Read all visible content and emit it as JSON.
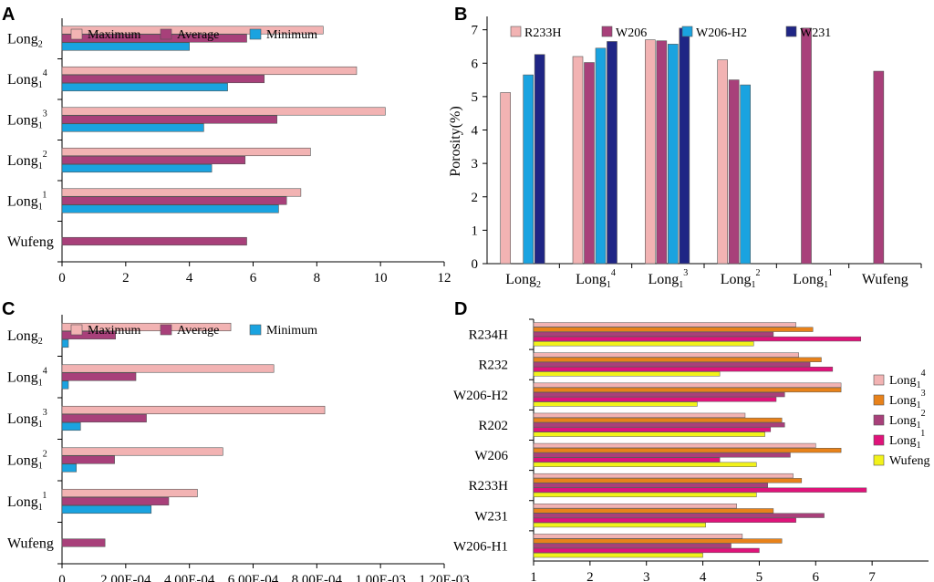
{
  "colors": {
    "maximum": "#f2b3b3",
    "average": "#a8407a",
    "minimum": "#1aa3e0",
    "R233H": "#f2b3b3",
    "W206": "#a8407a",
    "W206-H2": "#1aa3e0",
    "W231": "#1f2585",
    "Long1_4": "#f2b3b3",
    "Long1_3": "#e8821a",
    "Long1_2": "#a8407a",
    "Long1_1": "#e0137a",
    "Wufeng": "#f2f21a"
  },
  "chart_data": [
    {
      "panel": "A",
      "type": "bar",
      "orientation": "horizontal",
      "categories": [
        {
          "base": "Long",
          "sub": "2",
          "sup": ""
        },
        {
          "base": "Long",
          "sub": "1",
          "sup": "4"
        },
        {
          "base": "Long",
          "sub": "1",
          "sup": "3"
        },
        {
          "base": "Long",
          "sub": "1",
          "sup": "2"
        },
        {
          "base": "Long",
          "sub": "1",
          "sup": "1"
        },
        {
          "base": "Wufeng",
          "sub": "",
          "sup": ""
        }
      ],
      "series": [
        {
          "name": "Maximum",
          "color_key": "maximum",
          "values": [
            8.2,
            9.25,
            10.15,
            7.8,
            7.5,
            null
          ]
        },
        {
          "name": "Average",
          "color_key": "average",
          "values": [
            5.8,
            6.35,
            6.75,
            5.75,
            7.05,
            5.8
          ]
        },
        {
          "name": "Minimum",
          "color_key": "minimum",
          "values": [
            4.0,
            5.2,
            4.45,
            4.7,
            6.8,
            null
          ]
        }
      ],
      "xlim": [
        0,
        12
      ],
      "xticks": [
        "0",
        "2",
        "4",
        "6",
        "8",
        "10",
        "12"
      ],
      "xtick_values": [
        0,
        2,
        4,
        6,
        8,
        10,
        12
      ],
      "xlabel": "",
      "ylabel": "",
      "legend": [
        "Maximum",
        "Average",
        "Minimum"
      ],
      "legend_position": "top"
    },
    {
      "panel": "B",
      "type": "bar",
      "orientation": "vertical",
      "categories": [
        {
          "base": "Long",
          "sub": "2",
          "sup": ""
        },
        {
          "base": "Long",
          "sub": "1",
          "sup": "4"
        },
        {
          "base": "Long",
          "sub": "1",
          "sup": "3"
        },
        {
          "base": "Long",
          "sub": "1",
          "sup": "2"
        },
        {
          "base": "Long",
          "sub": "1",
          "sup": "1"
        },
        {
          "base": "Wufeng",
          "sub": "",
          "sup": ""
        }
      ],
      "series": [
        {
          "name": "R233H",
          "color_key": "R233H",
          "values": [
            5.12,
            6.2,
            6.7,
            6.1,
            null,
            null
          ]
        },
        {
          "name": "W206",
          "color_key": "W206",
          "values": [
            null,
            6.02,
            6.67,
            5.5,
            7.05,
            5.76
          ]
        },
        {
          "name": "W206-H2",
          "color_key": "W206-H2",
          "values": [
            5.65,
            6.45,
            6.57,
            5.35,
            null,
            null
          ]
        },
        {
          "name": "W231",
          "color_key": "W231",
          "values": [
            6.26,
            6.65,
            7.05,
            null,
            null,
            null
          ]
        }
      ],
      "ylim": [
        0,
        7.4
      ],
      "yticks": [
        "0",
        "1",
        "2",
        "3",
        "4",
        "5",
        "6",
        "7"
      ],
      "ytick_values": [
        0,
        1,
        2,
        3,
        4,
        5,
        6,
        7
      ],
      "ylabel": "Porosity(%)",
      "xlabel": "",
      "legend": [
        "R233H",
        "W206",
        "W206-H2",
        "W231"
      ],
      "legend_position": "top"
    },
    {
      "panel": "C",
      "type": "bar",
      "orientation": "horizontal",
      "categories": [
        {
          "base": "Long",
          "sub": "2",
          "sup": ""
        },
        {
          "base": "Long",
          "sub": "1",
          "sup": "4"
        },
        {
          "base": "Long",
          "sub": "1",
          "sup": "3"
        },
        {
          "base": "Long",
          "sub": "1",
          "sup": "2"
        },
        {
          "base": "Long",
          "sub": "1",
          "sup": "1"
        },
        {
          "base": "Wufeng",
          "sub": "",
          "sup": ""
        }
      ],
      "series": [
        {
          "name": "Maximum",
          "color_key": "maximum",
          "values": [
            0.00053,
            0.000665,
            0.000825,
            0.000505,
            0.000425,
            null
          ]
        },
        {
          "name": "Average",
          "color_key": "average",
          "values": [
            0.000168,
            0.000232,
            0.000265,
            0.000165,
            0.000335,
            0.000135
          ]
        },
        {
          "name": "Minimum",
          "color_key": "minimum",
          "values": [
            2e-05,
            2e-05,
            5.8e-05,
            4.5e-05,
            0.00028,
            null
          ]
        }
      ],
      "xlim": [
        0,
        0.0012
      ],
      "xticks": [
        "0",
        "2.00E-04",
        "4.00E-04",
        "6.00E-04",
        "8.00E-04",
        "1.00E-03",
        "1.20E-03"
      ],
      "xtick_values": [
        0,
        0.0002,
        0.0004,
        0.0006,
        0.0008,
        0.001,
        0.0012
      ],
      "xlabel": "",
      "ylabel": "",
      "legend": [
        "Maximum",
        "Average",
        "Minimum"
      ],
      "legend_position": "top"
    },
    {
      "panel": "D",
      "type": "bar",
      "orientation": "horizontal",
      "categories": [
        {
          "base": "R234H",
          "sub": "",
          "sup": ""
        },
        {
          "base": "R232",
          "sub": "",
          "sup": ""
        },
        {
          "base": "W206-H2",
          "sub": "",
          "sup": ""
        },
        {
          "base": "R202",
          "sub": "",
          "sup": ""
        },
        {
          "base": "W206",
          "sub": "",
          "sup": ""
        },
        {
          "base": "R233H",
          "sub": "",
          "sup": ""
        },
        {
          "base": "W231",
          "sub": "",
          "sup": ""
        },
        {
          "base": "W206-H1",
          "sub": "",
          "sup": ""
        }
      ],
      "series": [
        {
          "name": "Long1^4",
          "label": {
            "base": "Long",
            "sub": "1",
            "sup": "4"
          },
          "color_key": "Long1_4",
          "values": [
            5.65,
            5.7,
            6.45,
            4.75,
            6.0,
            5.6,
            4.6,
            4.7
          ]
        },
        {
          "name": "Long1^3",
          "label": {
            "base": "Long",
            "sub": "1",
            "sup": "3"
          },
          "color_key": "Long1_3",
          "values": [
            5.95,
            6.1,
            6.45,
            5.4,
            6.45,
            5.75,
            5.25,
            5.4
          ]
        },
        {
          "name": "Long1^2",
          "label": {
            "base": "Long",
            "sub": "1",
            "sup": "2"
          },
          "color_key": "Long1_2",
          "values": [
            5.25,
            5.9,
            5.45,
            5.45,
            5.55,
            5.15,
            6.15,
            4.5
          ]
        },
        {
          "name": "Long1^1",
          "label": {
            "base": "Long",
            "sub": "1",
            "sup": "1"
          },
          "color_key": "Long1_1",
          "values": [
            6.8,
            6.3,
            5.3,
            5.2,
            4.3,
            6.9,
            5.65,
            5.0
          ]
        },
        {
          "name": "Wufeng",
          "label": {
            "base": "Wufeng",
            "sub": "",
            "sup": ""
          },
          "color_key": "Wufeng",
          "values": [
            4.9,
            4.3,
            3.9,
            5.1,
            4.95,
            4.95,
            4.05,
            4.0
          ]
        }
      ],
      "xlim": [
        1,
        8
      ],
      "xticks": [
        "1",
        "2",
        "3",
        "4",
        "5",
        "6",
        "7"
      ],
      "xtick_values": [
        1,
        2,
        3,
        4,
        5,
        6,
        7
      ],
      "xlabel": "",
      "ylabel": "",
      "legend_position": "right"
    }
  ]
}
